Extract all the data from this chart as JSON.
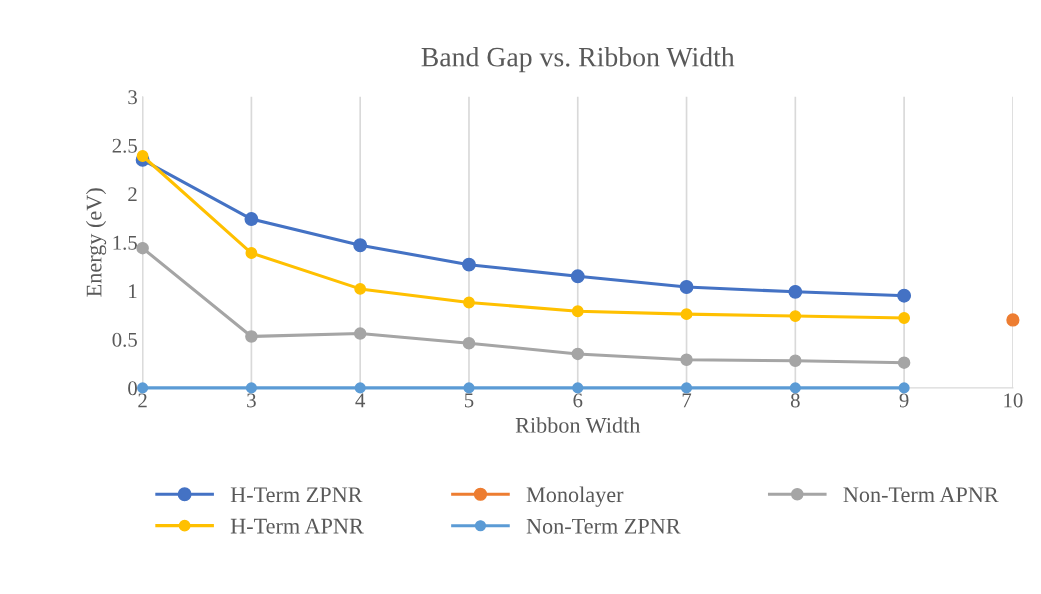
{
  "chart_data": {
    "type": "line",
    "title": "Band Gap vs. Ribbon Width",
    "xlabel": "Ribbon Width",
    "ylabel": "Energy (eV)",
    "xlim": [
      2,
      10
    ],
    "xticks": [
      2,
      3,
      4,
      5,
      6,
      7,
      8,
      9,
      10
    ],
    "ylim": [
      0,
      3
    ],
    "yticks": [
      0,
      0.5,
      1,
      1.5,
      2,
      2.5,
      3
    ],
    "grid": "x",
    "legend": "bottom",
    "marker": "circle",
    "series": [
      {
        "name": "H-Term ZPNR",
        "color": "#4472c4",
        "x": [
          2,
          3,
          4,
          5,
          6,
          7,
          8,
          9
        ],
        "values": [
          2.35,
          1.74,
          1.47,
          1.27,
          1.15,
          1.04,
          0.99,
          0.95
        ]
      },
      {
        "name": "Monolayer",
        "color": "#ed7d31",
        "x": [
          10
        ],
        "values": [
          0.7
        ]
      },
      {
        "name": "Non-Term APNR",
        "color": "#a5a5a5",
        "x": [
          2,
          3,
          4,
          5,
          6,
          7,
          8,
          9
        ],
        "values": [
          1.44,
          0.53,
          0.56,
          0.46,
          0.35,
          0.29,
          0.28,
          0.26
        ]
      },
      {
        "name": "H-Term APNR",
        "color": "#ffc000",
        "x": [
          2,
          3,
          4,
          5,
          6,
          7,
          8,
          9
        ],
        "values": [
          2.39,
          1.39,
          1.02,
          0.88,
          0.79,
          0.76,
          0.74,
          0.72
        ]
      },
      {
        "name": "Non-Term ZPNR",
        "color": "#5b9bd5",
        "x": [
          2,
          3,
          4,
          5,
          6,
          7,
          8,
          9
        ],
        "values": [
          0,
          0,
          0,
          0,
          0,
          0,
          0,
          0
        ]
      }
    ]
  }
}
